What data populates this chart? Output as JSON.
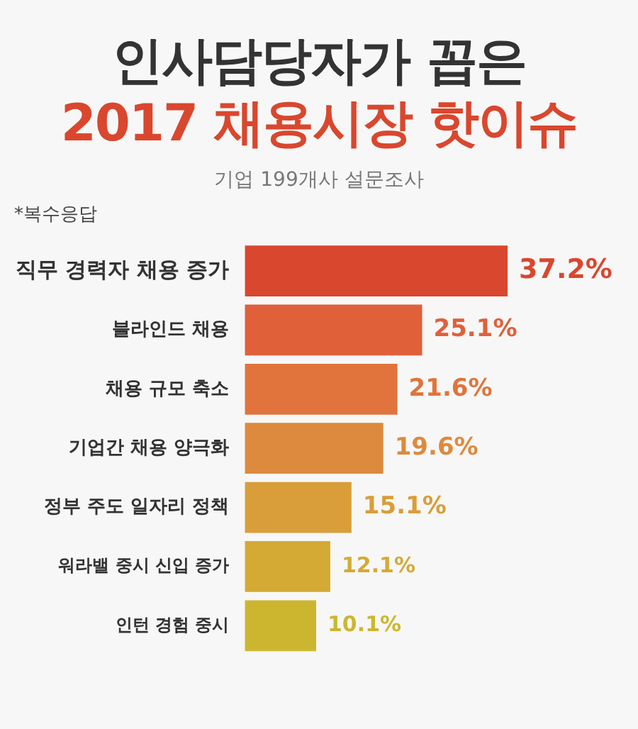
{
  "chart_data": {
    "type": "bar",
    "orientation": "horizontal",
    "title": "인사담당자가 꼽은",
    "subtitle": "2017 채용시장 핫이슈",
    "annotations": [
      "기업 199개사 설문조사",
      "*복수응답"
    ],
    "categories": [
      "직무 경력자 채용 증가",
      "블라인드 채용",
      "채용 규모 축소",
      "기업간 채용 양극화",
      "정부 주도 일자리 정책",
      "워라밸 중시 신입 증가",
      "인턴 경험 중시"
    ],
    "values": [
      37.2,
      25.1,
      21.6,
      19.6,
      15.1,
      12.1,
      10.1
    ],
    "value_labels": [
      "37.2%",
      "25.1%",
      "21.6%",
      "19.6%",
      "15.1%",
      "12.1%",
      "10.1%"
    ],
    "colors": [
      "#d9472e",
      "#e0603a",
      "#e0743c",
      "#dd8a3e",
      "#d99e3a",
      "#d4aa35",
      "#cdb62f"
    ],
    "tick_labels": "y",
    "grid": false,
    "legend": false
  }
}
